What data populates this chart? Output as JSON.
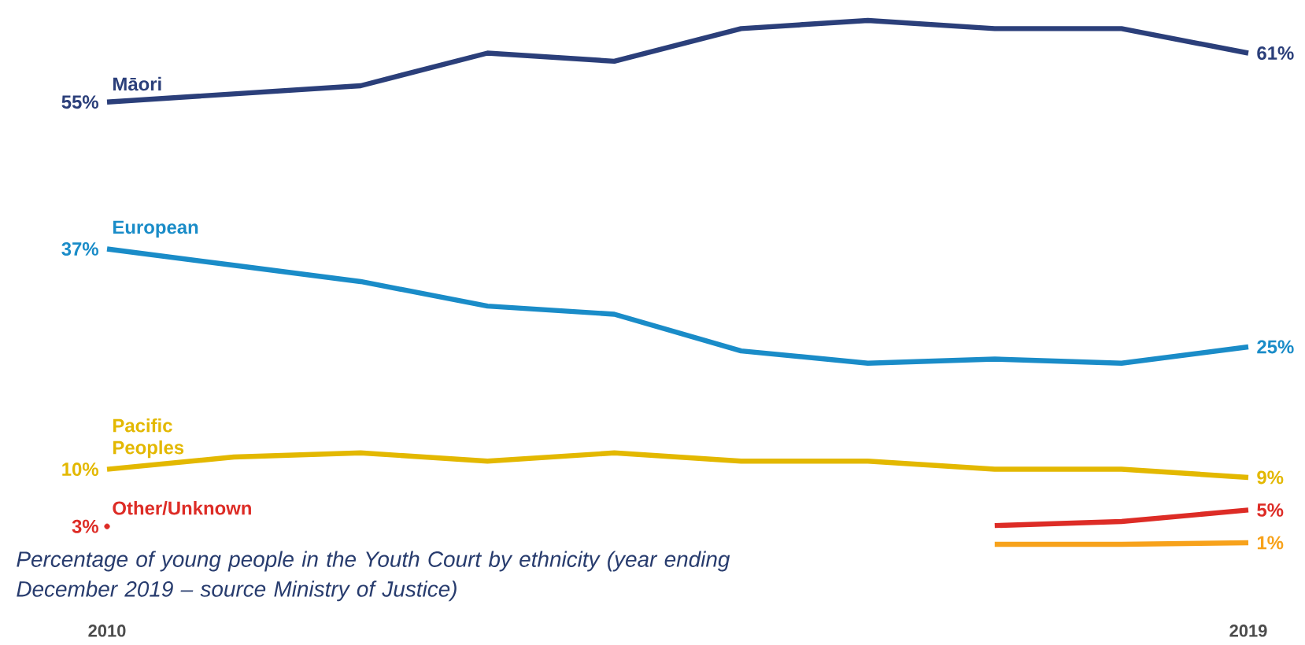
{
  "chart_data": {
    "type": "line",
    "tick_labels": "x",
    "categories": [
      "2010",
      null,
      null,
      null,
      null,
      null,
      null,
      null,
      null,
      "2019"
    ],
    "series": [
      {
        "name": "Māori",
        "color": "#2b3f7a",
        "values": [
          55,
          56,
          57,
          61,
          60,
          64,
          65,
          64,
          64,
          61
        ],
        "value_labels": [
          "55%",
          null,
          null,
          null,
          null,
          null,
          null,
          null,
          null,
          "61%"
        ]
      },
      {
        "name": "European",
        "color": "#1a8cc8",
        "values": [
          37,
          35,
          33,
          30,
          29,
          24.5,
          23,
          23.5,
          23,
          25
        ],
        "value_labels": [
          "37%",
          null,
          null,
          null,
          null,
          null,
          null,
          null,
          null,
          "25%"
        ]
      },
      {
        "name": "Pacific Peoples",
        "color": "#e3b800",
        "values": [
          10,
          11.5,
          12,
          11,
          12,
          11,
          11,
          10,
          10,
          9
        ],
        "value_labels": [
          "10%",
          null,
          null,
          null,
          null,
          null,
          null,
          null,
          null,
          "9%"
        ]
      },
      {
        "name": "Other/Unknown",
        "color": "#dd2c26",
        "values": [
          3,
          null,
          null,
          null,
          null,
          null,
          null,
          3.1,
          3.6,
          5
        ],
        "value_labels": [
          "3%",
          null,
          null,
          null,
          null,
          null,
          null,
          null,
          null,
          "5%"
        ]
      },
      {
        "color": "#f7a21b",
        "values": [
          null,
          null,
          null,
          null,
          null,
          null,
          null,
          0.8,
          0.8,
          1
        ],
        "value_labels": [
          null,
          null,
          null,
          null,
          null,
          null,
          null,
          null,
          null,
          "1%"
        ]
      }
    ],
    "annotations": [
      "Percentage of young people in the Youth Court by ethnicity (year ending December 2019 – source Ministry of Justice)"
    ]
  }
}
